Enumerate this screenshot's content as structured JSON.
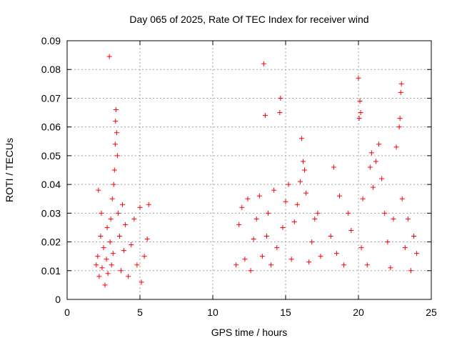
{
  "chart_data": {
    "type": "scatter",
    "title": "Day 065 of 2025, Rate Of TEC Index for receiver wind",
    "xlabel": "GPS time / hours",
    "ylabel": "ROTI / TECUs",
    "xlim": [
      0,
      25
    ],
    "ylim": [
      0,
      0.09
    ],
    "x_ticks": [
      0,
      5,
      10,
      15,
      20,
      25
    ],
    "x_tick_labels": [
      "0",
      "5",
      "10",
      "15",
      "20",
      "25"
    ],
    "y_ticks": [
      0,
      0.01,
      0.02,
      0.03,
      0.04,
      0.05,
      0.06,
      0.07,
      0.08,
      0.09
    ],
    "y_tick_labels": [
      "0",
      "0.01",
      "0.02",
      "0.03",
      "0.04",
      "0.05",
      "0.06",
      "0.07",
      "0.08",
      "0.09"
    ],
    "grid": true,
    "marker": "+",
    "marker_color": "#ff0000",
    "series": [
      {
        "points": [
          [
            2.0,
            0.012
          ],
          [
            2.1,
            0.015
          ],
          [
            2.15,
            0.038
          ],
          [
            2.2,
            0.008
          ],
          [
            2.3,
            0.022
          ],
          [
            2.35,
            0.03
          ],
          [
            2.4,
            0.011
          ],
          [
            2.5,
            0.018
          ],
          [
            2.6,
            0.005
          ],
          [
            2.7,
            0.014
          ],
          [
            2.75,
            0.025
          ],
          [
            2.8,
            0.009
          ],
          [
            2.9,
            0.0845
          ],
          [
            2.95,
            0.02
          ],
          [
            3.0,
            0.028
          ],
          [
            3.05,
            0.012
          ],
          [
            3.1,
            0.035
          ],
          [
            3.15,
            0.016
          ],
          [
            3.2,
            0.04
          ],
          [
            3.25,
            0.045
          ],
          [
            3.3,
            0.054
          ],
          [
            3.32,
            0.062
          ],
          [
            3.35,
            0.066
          ],
          [
            3.4,
            0.058
          ],
          [
            3.45,
            0.05
          ],
          [
            3.5,
            0.03
          ],
          [
            3.6,
            0.022
          ],
          [
            3.7,
            0.01
          ],
          [
            3.8,
            0.033
          ],
          [
            3.9,
            0.017
          ],
          [
            4.0,
            0.026
          ],
          [
            4.2,
            0.008
          ],
          [
            4.4,
            0.019
          ],
          [
            4.6,
            0.028
          ],
          [
            4.8,
            0.012
          ],
          [
            5.0,
            0.032
          ],
          [
            5.1,
            0.006
          ],
          [
            5.3,
            0.015
          ],
          [
            5.5,
            0.021
          ],
          [
            5.6,
            0.033
          ],
          [
            11.6,
            0.012
          ],
          [
            11.8,
            0.026
          ],
          [
            12.0,
            0.032
          ],
          [
            12.2,
            0.014
          ],
          [
            12.4,
            0.035
          ],
          [
            12.6,
            0.01
          ],
          [
            12.8,
            0.021
          ],
          [
            13.0,
            0.028
          ],
          [
            13.2,
            0.036
          ],
          [
            13.4,
            0.015
          ],
          [
            13.5,
            0.082
          ],
          [
            13.6,
            0.064
          ],
          [
            13.7,
            0.022
          ],
          [
            13.8,
            0.03
          ],
          [
            14.0,
            0.012
          ],
          [
            14.2,
            0.038
          ],
          [
            14.4,
            0.018
          ],
          [
            14.6,
            0.065
          ],
          [
            14.65,
            0.07
          ],
          [
            14.8,
            0.025
          ],
          [
            15.0,
            0.034
          ],
          [
            15.2,
            0.04
          ],
          [
            15.4,
            0.014
          ],
          [
            15.6,
            0.027
          ],
          [
            15.8,
            0.033
          ],
          [
            16.0,
            0.041
          ],
          [
            16.1,
            0.056
          ],
          [
            16.2,
            0.048
          ],
          [
            16.3,
            0.045
          ],
          [
            16.4,
            0.037
          ],
          [
            16.6,
            0.013
          ],
          [
            16.8,
            0.02
          ],
          [
            17.0,
            0.028
          ],
          [
            17.2,
            0.03
          ],
          [
            17.4,
            0.015
          ],
          [
            18.1,
            0.022
          ],
          [
            18.3,
            0.046
          ],
          [
            18.5,
            0.016
          ],
          [
            18.7,
            0.036
          ],
          [
            19.0,
            0.012
          ],
          [
            19.3,
            0.03
          ],
          [
            19.5,
            0.024
          ],
          [
            20.0,
            0.077
          ],
          [
            20.05,
            0.063
          ],
          [
            20.1,
            0.069
          ],
          [
            20.15,
            0.065
          ],
          [
            20.2,
            0.018
          ],
          [
            20.3,
            0.035
          ],
          [
            20.6,
            0.012
          ],
          [
            20.8,
            0.046
          ],
          [
            20.9,
            0.051
          ],
          [
            21.0,
            0.039
          ],
          [
            21.2,
            0.048
          ],
          [
            21.4,
            0.054
          ],
          [
            21.6,
            0.042
          ],
          [
            21.8,
            0.03
          ],
          [
            22.0,
            0.02
          ],
          [
            22.2,
            0.011
          ],
          [
            22.4,
            0.028
          ],
          [
            22.6,
            0.053
          ],
          [
            22.8,
            0.06
          ],
          [
            22.85,
            0.063
          ],
          [
            22.9,
            0.072
          ],
          [
            22.95,
            0.075
          ],
          [
            23.0,
            0.035
          ],
          [
            23.2,
            0.018
          ],
          [
            23.4,
            0.028
          ],
          [
            23.6,
            0.01
          ],
          [
            23.8,
            0.022
          ],
          [
            24.0,
            0.016
          ]
        ]
      }
    ]
  }
}
